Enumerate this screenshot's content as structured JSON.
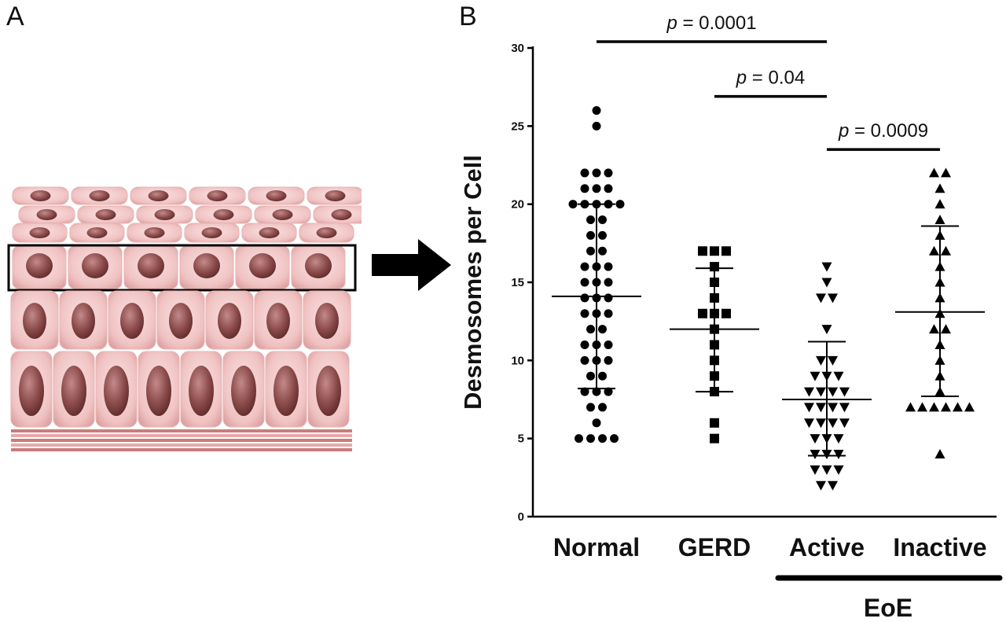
{
  "figure": {
    "panel_a_label": "A",
    "panel_b_label": "B",
    "tissue_illustration": "stratified-squamous-epithelium-illustration",
    "arrow_icon": "right-arrow-icon"
  },
  "chart_data": {
    "type": "scatter",
    "ylabel": "Desmosomes per Cell",
    "ylim": [
      0,
      30
    ],
    "yticks": [
      "0",
      "5",
      "10",
      "15",
      "20",
      "25",
      "30"
    ],
    "categories": [
      "Normal",
      "GERD",
      "Active",
      "Inactive"
    ],
    "group_label": "EoE",
    "group_members": [
      "Active",
      "Inactive"
    ],
    "markers": {
      "Normal": "circle",
      "GERD": "square",
      "Active": "triangle-down",
      "Inactive": "triangle-up"
    },
    "series": [
      {
        "category": "Normal",
        "mean": 14.1,
        "sd_low": 8.2,
        "sd_high": 20.0,
        "values": [
          26,
          25,
          22,
          22,
          22,
          21,
          21,
          21,
          20,
          20,
          20,
          20,
          20,
          19,
          19,
          18,
          18,
          17,
          17,
          16,
          16,
          16,
          15,
          15,
          15,
          14,
          14,
          14,
          13,
          13,
          13,
          12,
          12,
          11,
          11,
          11,
          10,
          10,
          10,
          9,
          9,
          8,
          8,
          8,
          7,
          7,
          6,
          5,
          5,
          5,
          5
        ]
      },
      {
        "category": "GERD",
        "mean": 12.0,
        "sd_low": 8.0,
        "sd_high": 15.9,
        "values": [
          17,
          17,
          17,
          16,
          15,
          14,
          13,
          13,
          13,
          12,
          11,
          10,
          9,
          8,
          6,
          5
        ]
      },
      {
        "category": "Active",
        "mean": 7.5,
        "sd_low": 3.9,
        "sd_high": 11.2,
        "values": [
          16,
          15,
          14,
          14,
          12,
          10,
          10,
          9,
          9,
          9,
          8,
          8,
          8,
          8,
          7,
          7,
          7,
          7,
          6,
          6,
          6,
          6,
          5,
          5,
          5,
          4,
          4,
          4,
          3,
          3,
          3,
          2,
          2
        ]
      },
      {
        "category": "Inactive",
        "mean": 13.1,
        "sd_low": 7.7,
        "sd_high": 18.6,
        "values": [
          22,
          22,
          21,
          20,
          19,
          18,
          17,
          17,
          16,
          15,
          14,
          13,
          12,
          12,
          11,
          10,
          9,
          8,
          7,
          7,
          7,
          7,
          7,
          7,
          4
        ]
      }
    ],
    "comparisons": [
      {
        "from": "Normal",
        "to": "Active",
        "label": "p = 0.0001",
        "y": 30.4
      },
      {
        "from": "GERD",
        "to": "Active",
        "label": "p = 0.04",
        "y": 26.9
      },
      {
        "from": "Active",
        "to": "Inactive",
        "label": "p = 0.0009",
        "y": 23.5
      }
    ]
  }
}
